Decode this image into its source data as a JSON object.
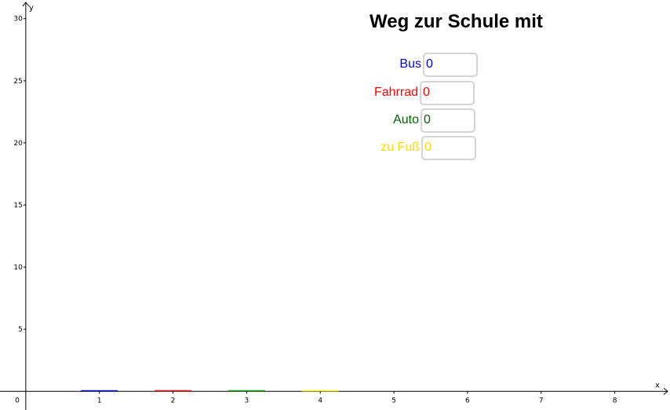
{
  "title": "Weg zur Schule mit",
  "inputs": [
    {
      "label": "Bus",
      "value": "0",
      "color": "#0000ff"
    },
    {
      "label": "Fahrrad",
      "value": "0",
      "color": "#ff0000"
    },
    {
      "label": "Auto",
      "value": "0",
      "color": "#006400"
    },
    {
      "label": "zu Fuß",
      "value": "0",
      "color": "#ffd700"
    }
  ],
  "chart_data": {
    "type": "bar",
    "categories": [
      "1",
      "2",
      "3",
      "4"
    ],
    "values": [
      0,
      0,
      0,
      0
    ],
    "colors": [
      "#0000ff",
      "#ff0000",
      "#009900",
      "#ffff00"
    ],
    "xlabel": "x",
    "ylabel": "y",
    "origin_label": "0",
    "xticks": [
      "1",
      "2",
      "3",
      "4",
      "5",
      "6",
      "7",
      "8"
    ],
    "yticks": [
      "5",
      "10",
      "15",
      "20",
      "25",
      "30"
    ],
    "xlim": [
      -0.35,
      8.75
    ],
    "ylim": [
      -1.5,
      31.5
    ]
  }
}
